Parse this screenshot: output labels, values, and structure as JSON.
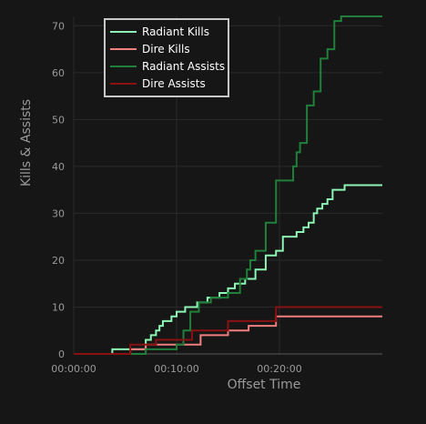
{
  "chart_data": {
    "type": "line",
    "xlabel": "Offset Time",
    "ylabel": "Kills & Assists",
    "xlim": [
      0,
      1800
    ],
    "ylim": [
      0,
      72
    ],
    "x_ticks": [
      {
        "value": 0,
        "label": "00:00:00"
      },
      {
        "value": 600,
        "label": "00:10:00"
      },
      {
        "value": 1200,
        "label": "00:20:00"
      }
    ],
    "y_ticks": [
      0,
      10,
      20,
      30,
      40,
      50,
      60,
      70
    ],
    "grid": true,
    "legend_position": "top-left",
    "series": [
      {
        "name": "Radiant Kills",
        "color": "#8df5b5",
        "points": [
          [
            0,
            0
          ],
          [
            225,
            1
          ],
          [
            420,
            3
          ],
          [
            450,
            4
          ],
          [
            480,
            5
          ],
          [
            500,
            6
          ],
          [
            520,
            7
          ],
          [
            570,
            8
          ],
          [
            600,
            9
          ],
          [
            650,
            10
          ],
          [
            720,
            11
          ],
          [
            780,
            12
          ],
          [
            850,
            13
          ],
          [
            900,
            14
          ],
          [
            940,
            15
          ],
          [
            1000,
            16
          ],
          [
            1060,
            18
          ],
          [
            1120,
            21
          ],
          [
            1180,
            22
          ],
          [
            1220,
            25
          ],
          [
            1300,
            26
          ],
          [
            1340,
            27
          ],
          [
            1370,
            28
          ],
          [
            1400,
            30
          ],
          [
            1420,
            31
          ],
          [
            1450,
            32
          ],
          [
            1480,
            33
          ],
          [
            1510,
            35
          ],
          [
            1580,
            36
          ],
          [
            1800,
            36
          ]
        ]
      },
      {
        "name": "Dire Kills",
        "color": "#f07f7f",
        "points": [
          [
            0,
            0
          ],
          [
            330,
            1
          ],
          [
            420,
            2
          ],
          [
            740,
            4
          ],
          [
            900,
            5
          ],
          [
            1020,
            6
          ],
          [
            1180,
            8
          ],
          [
            1800,
            8
          ]
        ]
      },
      {
        "name": "Radiant Assists",
        "color": "#20803b",
        "points": [
          [
            0,
            0
          ],
          [
            420,
            1
          ],
          [
            600,
            2
          ],
          [
            640,
            5
          ],
          [
            680,
            9
          ],
          [
            730,
            11
          ],
          [
            800,
            12
          ],
          [
            900,
            13
          ],
          [
            970,
            16
          ],
          [
            1010,
            18
          ],
          [
            1030,
            20
          ],
          [
            1060,
            22
          ],
          [
            1120,
            28
          ],
          [
            1180,
            37
          ],
          [
            1280,
            40
          ],
          [
            1300,
            43
          ],
          [
            1320,
            45
          ],
          [
            1360,
            53
          ],
          [
            1400,
            56
          ],
          [
            1440,
            63
          ],
          [
            1480,
            65
          ],
          [
            1520,
            71
          ],
          [
            1560,
            72
          ],
          [
            1800,
            72
          ]
        ]
      },
      {
        "name": "Dire Assists",
        "color": "#8a1111",
        "points": [
          [
            0,
            0
          ],
          [
            330,
            2
          ],
          [
            480,
            3
          ],
          [
            690,
            5
          ],
          [
            900,
            7
          ],
          [
            1180,
            10
          ],
          [
            1800,
            10
          ]
        ]
      }
    ]
  }
}
